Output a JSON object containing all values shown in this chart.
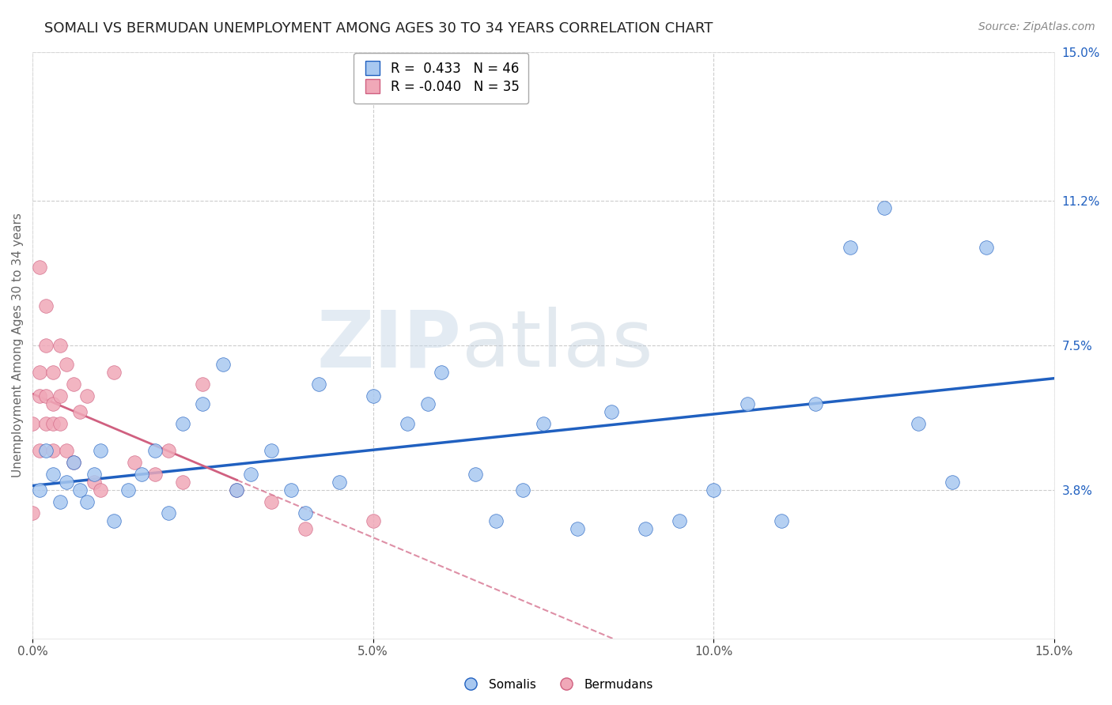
{
  "title": "SOMALI VS BERMUDAN UNEMPLOYMENT AMONG AGES 30 TO 34 YEARS CORRELATION CHART",
  "source": "Source: ZipAtlas.com",
  "ylabel": "Unemployment Among Ages 30 to 34 years",
  "xlim": [
    0.0,
    0.15
  ],
  "ylim": [
    0.0,
    0.15
  ],
  "xticks": [
    0.0,
    0.05,
    0.1,
    0.15
  ],
  "xtick_labels": [
    "0.0%",
    "5.0%",
    "10.0%",
    "15.0%"
  ],
  "ytick_labels_right": [
    "3.8%",
    "7.5%",
    "11.2%",
    "15.0%"
  ],
  "yticks_right": [
    0.038,
    0.075,
    0.112,
    0.15
  ],
  "somali_R": 0.433,
  "somali_N": 46,
  "bermudan_R": -0.04,
  "bermudan_N": 35,
  "somali_color": "#a8c8f0",
  "bermudan_color": "#f0a8b8",
  "line_somali_color": "#2060c0",
  "line_bermudan_color": "#d06080",
  "background_color": "#ffffff",
  "grid_color": "#cccccc",
  "somali_x": [
    0.001,
    0.002,
    0.003,
    0.004,
    0.005,
    0.006,
    0.007,
    0.008,
    0.009,
    0.01,
    0.012,
    0.014,
    0.016,
    0.018,
    0.02,
    0.022,
    0.025,
    0.028,
    0.03,
    0.032,
    0.035,
    0.038,
    0.04,
    0.042,
    0.045,
    0.05,
    0.055,
    0.058,
    0.06,
    0.065,
    0.068,
    0.072,
    0.075,
    0.08,
    0.085,
    0.09,
    0.095,
    0.1,
    0.105,
    0.11,
    0.115,
    0.12,
    0.125,
    0.13,
    0.135,
    0.14
  ],
  "somali_y": [
    0.038,
    0.048,
    0.042,
    0.035,
    0.04,
    0.045,
    0.038,
    0.035,
    0.042,
    0.048,
    0.03,
    0.038,
    0.042,
    0.048,
    0.032,
    0.055,
    0.06,
    0.07,
    0.038,
    0.042,
    0.048,
    0.038,
    0.032,
    0.065,
    0.04,
    0.062,
    0.055,
    0.06,
    0.068,
    0.042,
    0.03,
    0.038,
    0.055,
    0.028,
    0.058,
    0.028,
    0.03,
    0.038,
    0.06,
    0.03,
    0.06,
    0.1,
    0.11,
    0.055,
    0.04,
    0.1
  ],
  "bermudan_x": [
    0.0,
    0.0,
    0.001,
    0.001,
    0.001,
    0.001,
    0.002,
    0.002,
    0.002,
    0.002,
    0.003,
    0.003,
    0.003,
    0.003,
    0.004,
    0.004,
    0.004,
    0.005,
    0.005,
    0.006,
    0.006,
    0.007,
    0.008,
    0.009,
    0.01,
    0.012,
    0.015,
    0.018,
    0.02,
    0.022,
    0.025,
    0.03,
    0.035,
    0.04,
    0.05
  ],
  "bermudan_y": [
    0.055,
    0.032,
    0.095,
    0.068,
    0.062,
    0.048,
    0.085,
    0.075,
    0.062,
    0.055,
    0.068,
    0.06,
    0.055,
    0.048,
    0.075,
    0.062,
    0.055,
    0.07,
    0.048,
    0.065,
    0.045,
    0.058,
    0.062,
    0.04,
    0.038,
    0.068,
    0.045,
    0.042,
    0.048,
    0.04,
    0.065,
    0.038,
    0.035,
    0.028,
    0.03
  ],
  "watermark_zip": "ZIP",
  "watermark_atlas": "atlas",
  "title_fontsize": 13,
  "label_fontsize": 11,
  "tick_fontsize": 11,
  "legend_fontsize": 12,
  "source_fontsize": 10
}
